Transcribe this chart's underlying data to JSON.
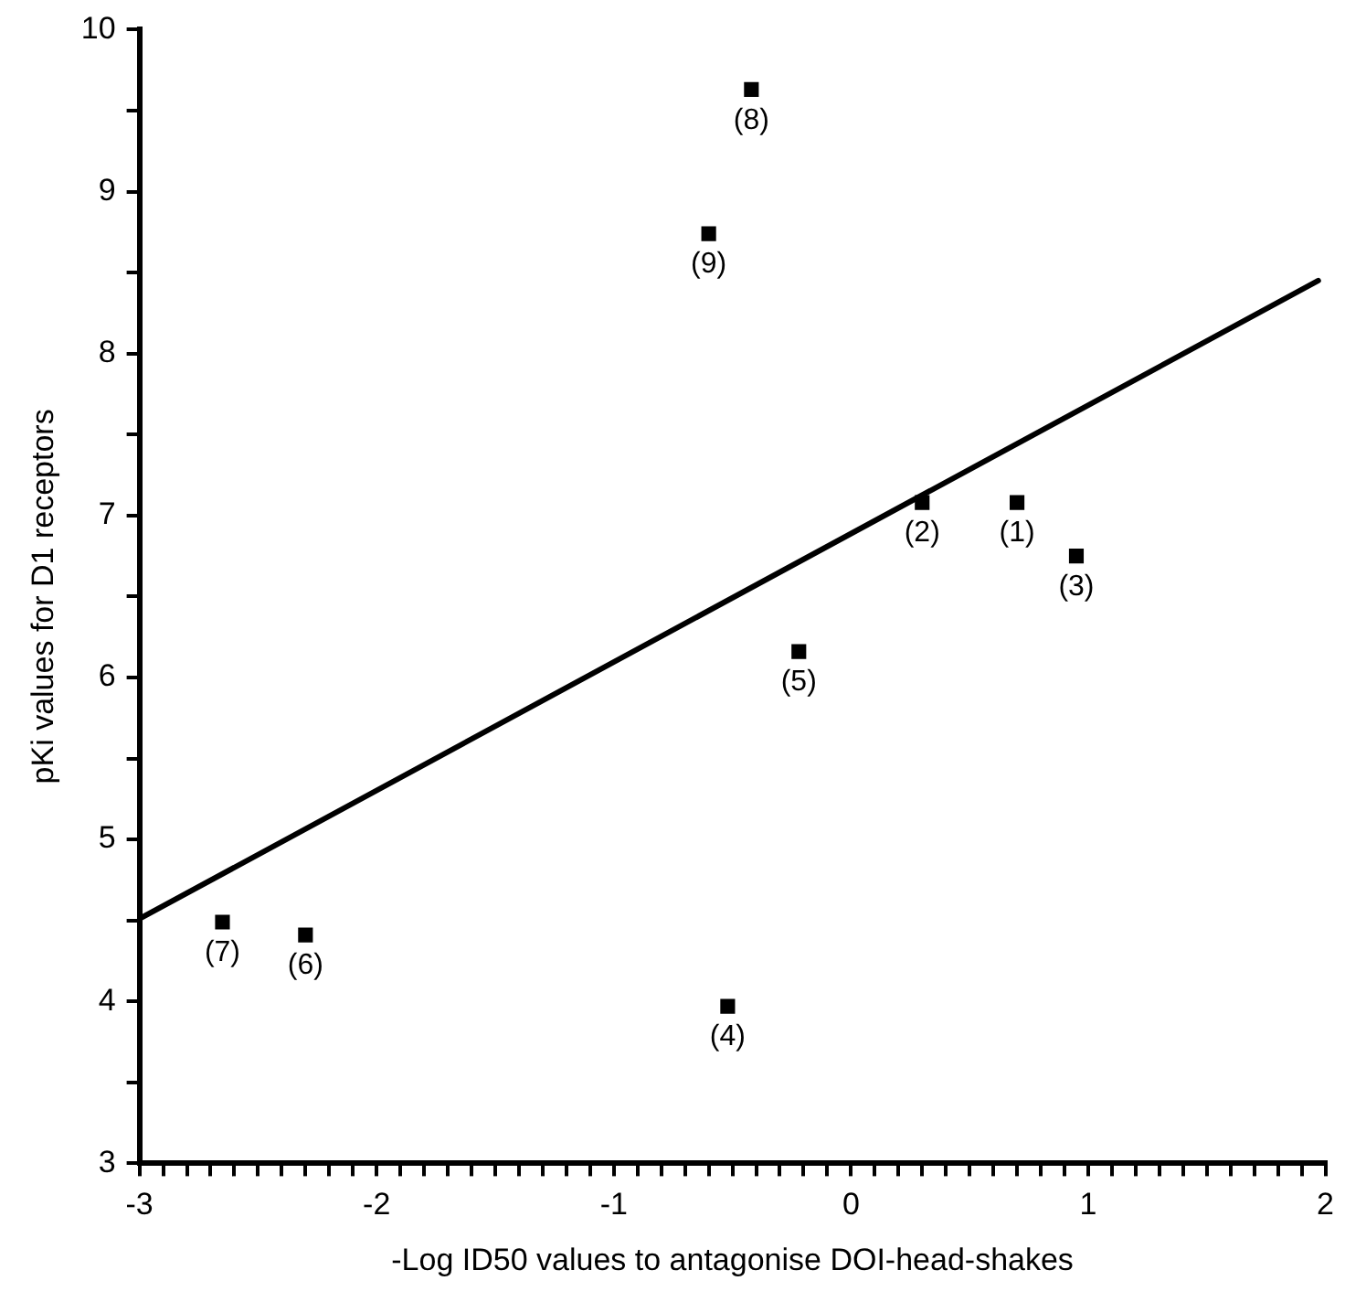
{
  "chart_data": {
    "type": "scatter",
    "xlabel": "-Log ID50 values to antagonise DOI-head-shakes",
    "ylabel": "pKi values for D1 receptors",
    "marker": "square",
    "grid": false,
    "legend": false,
    "xlim": [
      -3,
      2
    ],
    "ylim": [
      3,
      10
    ],
    "xticks": [
      -3,
      {
        "value": -2.9,
        "label": null
      },
      {
        "value": -2.8,
        "label": null
      },
      {
        "value": -2.7,
        "label": null
      },
      {
        "value": -2.6,
        "label": null
      },
      {
        "value": -2.5,
        "label": null
      },
      {
        "value": -2.4,
        "label": null
      },
      {
        "value": -2.3,
        "label": null
      },
      {
        "value": -2.2,
        "label": null
      },
      {
        "value": -2.1,
        "label": null
      },
      -2,
      {
        "value": -1.9,
        "label": null
      },
      {
        "value": -1.8,
        "label": null
      },
      {
        "value": -1.7,
        "label": null
      },
      {
        "value": -1.6,
        "label": null
      },
      {
        "value": -1.5,
        "label": null
      },
      {
        "value": -1.4,
        "label": null
      },
      {
        "value": -1.3,
        "label": null
      },
      {
        "value": -1.2,
        "label": null
      },
      {
        "value": -1.1,
        "label": null
      },
      -1,
      {
        "value": -0.9,
        "label": null
      },
      {
        "value": -0.8,
        "label": null
      },
      {
        "value": -0.7,
        "label": null
      },
      {
        "value": -0.6,
        "label": null
      },
      {
        "value": -0.5,
        "label": null
      },
      {
        "value": -0.4,
        "label": null
      },
      {
        "value": -0.3,
        "label": null
      },
      {
        "value": -0.2,
        "label": null
      },
      {
        "value": -0.1,
        "label": null
      },
      0,
      {
        "value": 0.1,
        "label": null
      },
      {
        "value": 0.2,
        "label": null
      },
      {
        "value": 0.3,
        "label": null
      },
      {
        "value": 0.4,
        "label": null
      },
      {
        "value": 0.5,
        "label": null
      },
      {
        "value": 0.6,
        "label": null
      },
      {
        "value": 0.7,
        "label": null
      },
      {
        "value": 0.8,
        "label": null
      },
      {
        "value": 0.9,
        "label": null
      },
      1,
      {
        "value": 1.1,
        "label": null
      },
      {
        "value": 1.2,
        "label": null
      },
      {
        "value": 1.3,
        "label": null
      },
      {
        "value": 1.4,
        "label": null
      },
      {
        "value": 1.5,
        "label": null
      },
      {
        "value": 1.6,
        "label": null
      },
      {
        "value": 1.7,
        "label": null
      },
      {
        "value": 1.8,
        "label": null
      },
      {
        "value": 1.9,
        "label": null
      },
      2
    ],
    "yticks": [
      3,
      {
        "value": 3.5,
        "label": null
      },
      4,
      {
        "value": 4.5,
        "label": null
      },
      5,
      {
        "value": 5.5,
        "label": null
      },
      6,
      {
        "value": 6.5,
        "label": null
      },
      7,
      {
        "value": 7.5,
        "label": null
      },
      8,
      {
        "value": 8.5,
        "label": null
      },
      9,
      {
        "value": 9.5,
        "label": null
      },
      10
    ],
    "series": [
      {
        "color": "#000000",
        "x": [
          0.7,
          0.3,
          0.95,
          -0.52,
          -0.22,
          -2.3,
          -2.65,
          -0.42,
          -0.6
        ],
        "values": [
          7.08,
          7.08,
          6.75,
          3.97,
          6.16,
          4.41,
          4.49,
          9.63,
          8.74
        ]
      },
      {
        "type": "line",
        "color": "#000000",
        "marker": "none",
        "x": [
          -3,
          1.97
        ],
        "values": [
          4.51,
          8.45
        ]
      }
    ],
    "annotations": [
      {
        "text": "(1)",
        "x": 0.7,
        "y": 7.08
      },
      {
        "text": "(2)",
        "x": 0.3,
        "y": 7.08
      },
      {
        "text": "(3)",
        "x": 0.95,
        "y": 6.75
      },
      {
        "text": "(4)",
        "x": -0.52,
        "y": 3.97
      },
      {
        "text": "(5)",
        "x": -0.22,
        "y": 6.16
      },
      {
        "text": "(6)",
        "x": -2.3,
        "y": 4.41
      },
      {
        "text": "(7)",
        "x": -2.65,
        "y": 4.49
      },
      {
        "text": "(8)",
        "x": -0.42,
        "y": 9.63
      },
      {
        "text": "(9)",
        "x": -0.6,
        "y": 8.74
      }
    ]
  }
}
